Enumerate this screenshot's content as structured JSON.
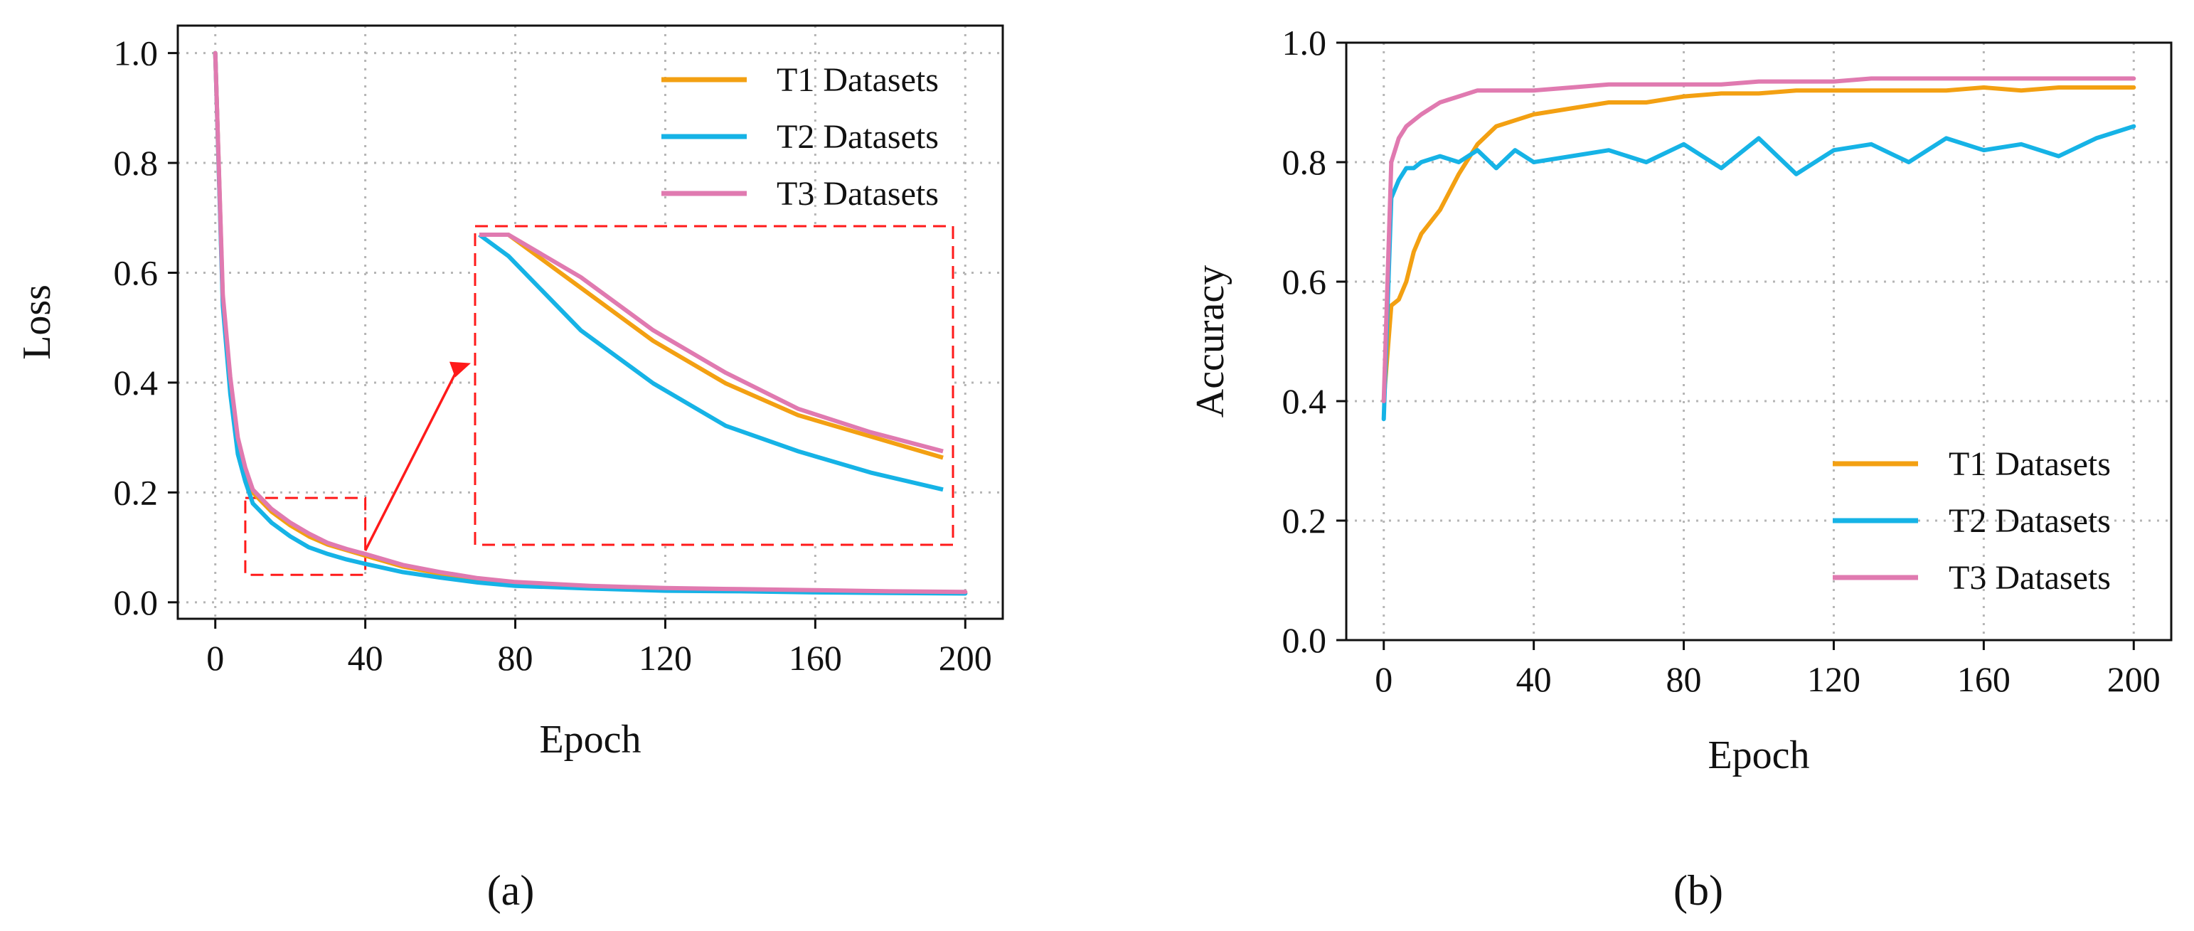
{
  "chart_data": [
    {
      "type": "line",
      "panel_label": "(a)",
      "xlabel": "Epoch",
      "ylabel": "Loss",
      "xlim": [
        -10,
        210
      ],
      "ylim": [
        -0.03,
        1.05
      ],
      "xticks": [
        0,
        40,
        80,
        120,
        160,
        200
      ],
      "xtick_labels": [
        "0",
        "40",
        "80",
        "120",
        "160",
        "200"
      ],
      "yticks": [
        0.0,
        0.2,
        0.4,
        0.6,
        0.8,
        1.0
      ],
      "ytick_labels": [
        "0.0",
        "0.2",
        "0.4",
        "0.6",
        "0.8",
        "1.0"
      ],
      "grid": true,
      "legend_position": "top-right",
      "x": [
        0,
        2,
        4,
        6,
        8,
        10,
        15,
        20,
        25,
        30,
        35,
        40,
        50,
        60,
        70,
        80,
        100,
        120,
        140,
        160,
        180,
        200
      ],
      "series": [
        {
          "name": "T1 Datasets",
          "color": "#f3a012",
          "values": [
            1.0,
            0.55,
            0.4,
            0.29,
            0.24,
            0.2,
            0.165,
            0.14,
            0.12,
            0.105,
            0.095,
            0.085,
            0.065,
            0.052,
            0.042,
            0.035,
            0.028,
            0.024,
            0.022,
            0.02,
            0.018,
            0.017
          ]
        },
        {
          "name": "T2 Datasets",
          "color": "#16b3e6",
          "values": [
            1.0,
            0.54,
            0.38,
            0.27,
            0.22,
            0.18,
            0.145,
            0.12,
            0.1,
            0.088,
            0.078,
            0.07,
            0.055,
            0.045,
            0.036,
            0.03,
            0.025,
            0.021,
            0.02,
            0.018,
            0.017,
            0.016
          ]
        },
        {
          "name": "T3 Datasets",
          "color": "#e07ab0",
          "values": [
            1.0,
            0.56,
            0.41,
            0.3,
            0.245,
            0.205,
            0.17,
            0.145,
            0.125,
            0.108,
            0.097,
            0.088,
            0.068,
            0.055,
            0.044,
            0.037,
            0.03,
            0.026,
            0.024,
            0.022,
            0.02,
            0.019
          ]
        }
      ],
      "zoom_region": {
        "x_range": [
          8,
          40
        ],
        "y_range": [
          0.05,
          0.19
        ]
      }
    },
    {
      "type": "line",
      "panel_label": "(b)",
      "xlabel": "Epoch",
      "ylabel": "Accuracy",
      "xlim": [
        -10,
        210
      ],
      "ylim": [
        0.0,
        1.0
      ],
      "xticks": [
        0,
        40,
        80,
        120,
        160,
        200
      ],
      "xtick_labels": [
        "0",
        "40",
        "80",
        "120",
        "160",
        "200"
      ],
      "yticks": [
        0.0,
        0.2,
        0.4,
        0.6,
        0.8,
        1.0
      ],
      "ytick_labels": [
        "0.0",
        "0.2",
        "0.4",
        "0.6",
        "0.8",
        "1.0"
      ],
      "grid": true,
      "legend_position": "lower-right",
      "x": [
        0,
        2,
        4,
        6,
        8,
        10,
        15,
        20,
        25,
        30,
        35,
        40,
        50,
        60,
        70,
        80,
        90,
        100,
        110,
        120,
        130,
        140,
        150,
        160,
        170,
        180,
        190,
        200
      ],
      "series": [
        {
          "name": "T1 Datasets",
          "color": "#f3a012",
          "values": [
            0.4,
            0.56,
            0.57,
            0.6,
            0.65,
            0.68,
            0.72,
            0.78,
            0.83,
            0.86,
            0.87,
            0.88,
            0.89,
            0.9,
            0.9,
            0.91,
            0.915,
            0.915,
            0.92,
            0.92,
            0.92,
            0.92,
            0.92,
            0.925,
            0.92,
            0.925,
            0.925,
            0.925
          ]
        },
        {
          "name": "T2 Datasets",
          "color": "#16b3e6",
          "values": [
            0.37,
            0.74,
            0.77,
            0.79,
            0.79,
            0.8,
            0.81,
            0.8,
            0.82,
            0.79,
            0.82,
            0.8,
            0.81,
            0.82,
            0.8,
            0.83,
            0.79,
            0.84,
            0.78,
            0.82,
            0.83,
            0.8,
            0.84,
            0.82,
            0.83,
            0.81,
            0.84,
            0.86
          ]
        },
        {
          "name": "T3 Datasets",
          "color": "#e07ab0",
          "values": [
            0.4,
            0.8,
            0.84,
            0.86,
            0.87,
            0.88,
            0.9,
            0.91,
            0.92,
            0.92,
            0.92,
            0.92,
            0.925,
            0.93,
            0.93,
            0.93,
            0.93,
            0.935,
            0.935,
            0.935,
            0.94,
            0.94,
            0.94,
            0.94,
            0.94,
            0.94,
            0.94,
            0.94
          ]
        }
      ]
    }
  ]
}
